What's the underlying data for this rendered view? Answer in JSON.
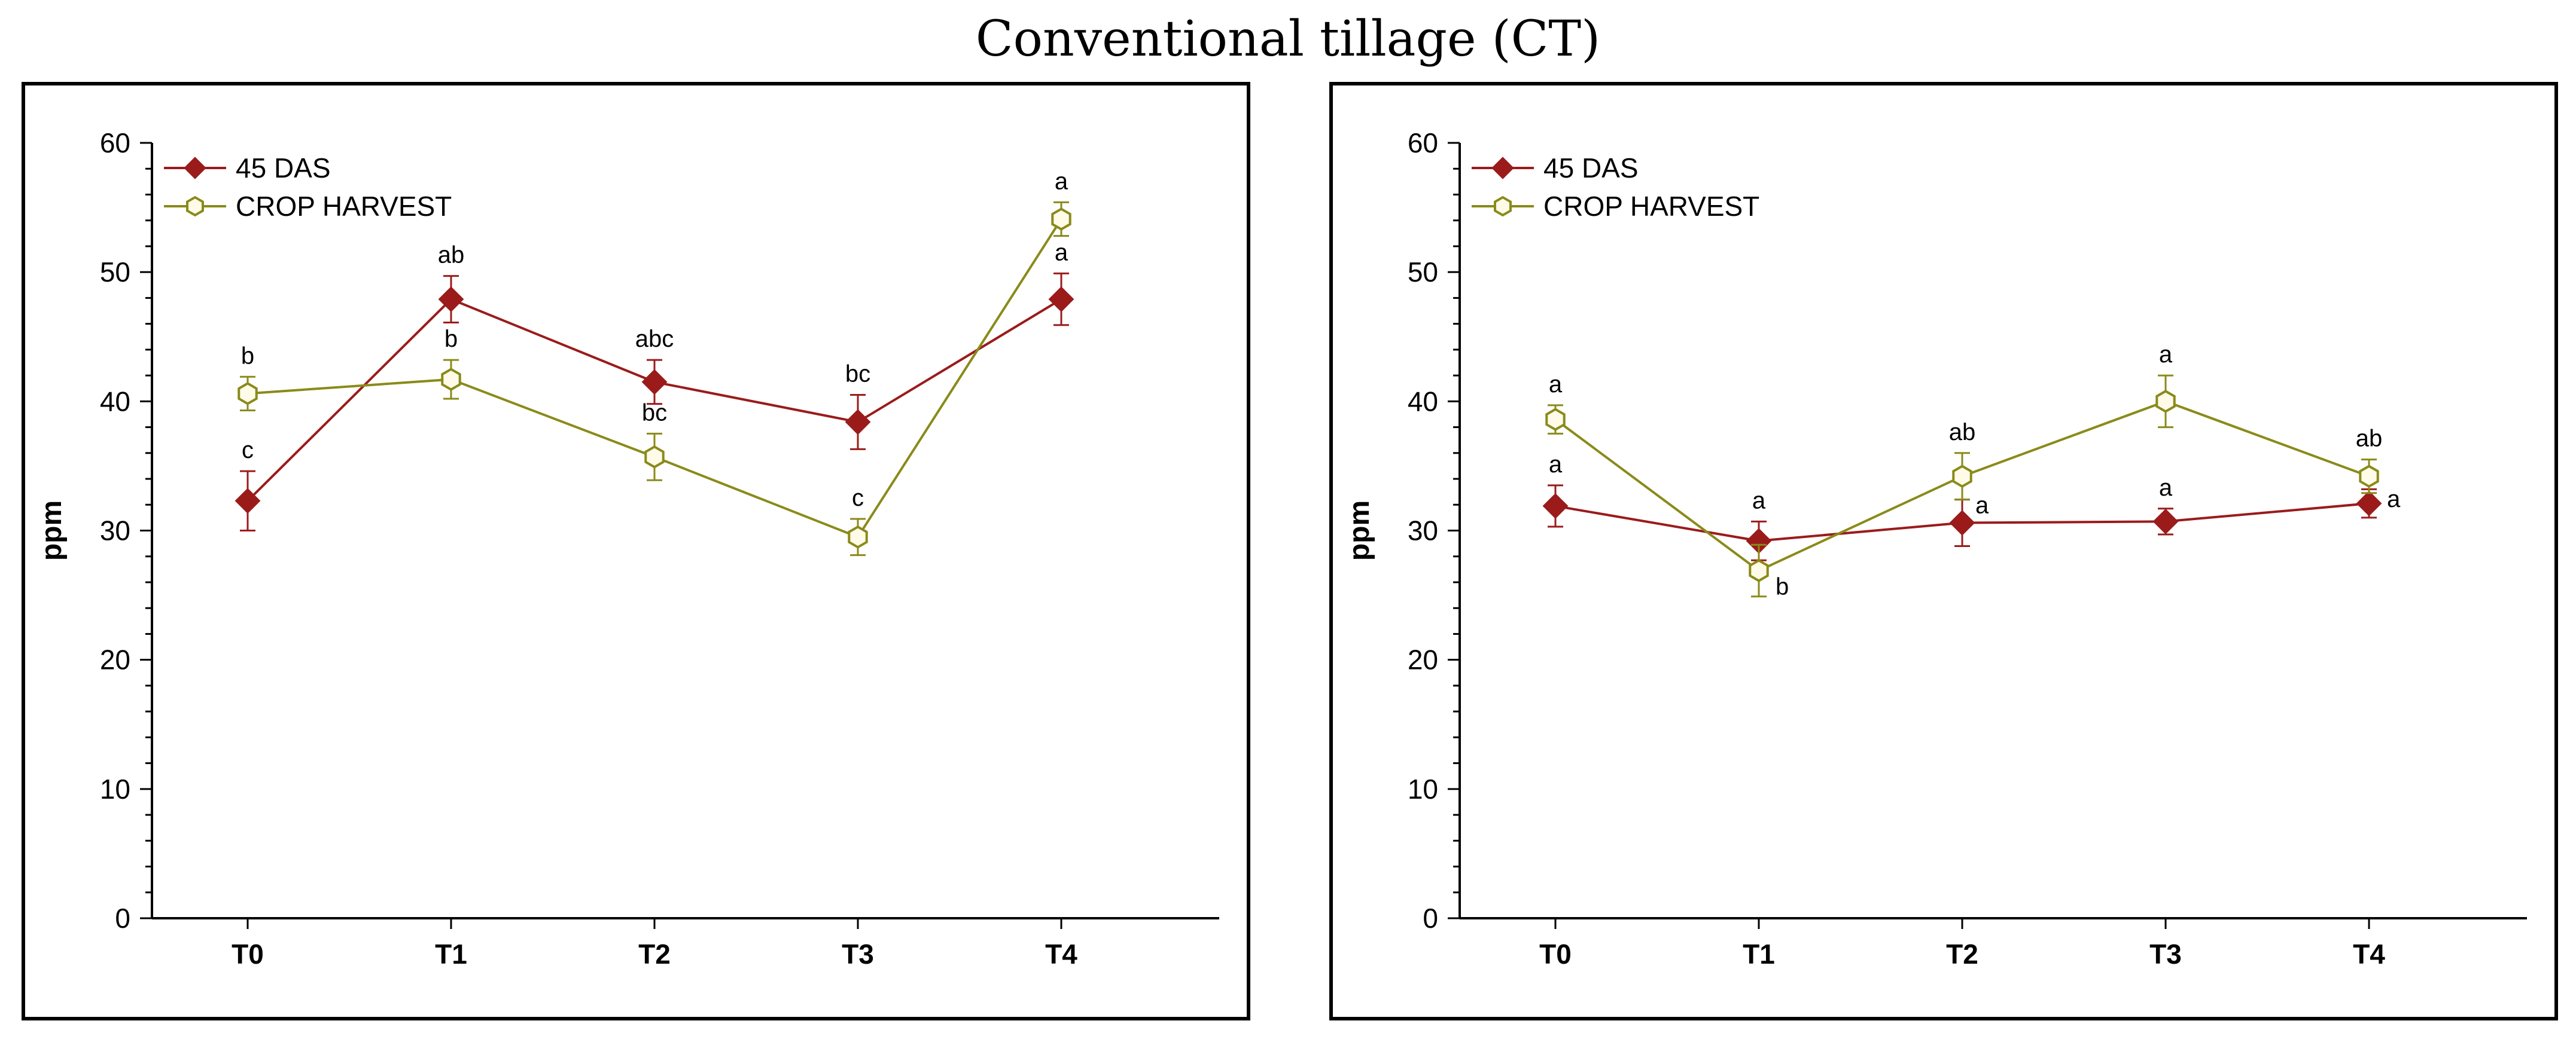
{
  "title": "Conventional tillage (CT)",
  "chart_data": [
    {
      "type": "line",
      "ylabel": "ppm",
      "xlabel": "",
      "ylim": [
        0,
        60
      ],
      "yticks": [
        0,
        10,
        20,
        30,
        40,
        50,
        60
      ],
      "categories": [
        "T0",
        "T1",
        "T2",
        "T3",
        "T4"
      ],
      "legend_position": "top-left",
      "series": [
        {
          "name": "45 DAS",
          "color": "#9b1b1b",
          "marker": "diamond",
          "values": [
            32.3,
            47.9,
            41.5,
            38.4,
            47.9
          ],
          "errors": [
            2.3,
            1.8,
            1.7,
            2.1,
            2.0
          ],
          "labels": [
            "c",
            "ab",
            "abc",
            "bc",
            "a"
          ]
        },
        {
          "name": "CROP HARVEST",
          "color": "#8a8a1a",
          "marker": "hexagon",
          "values": [
            40.6,
            41.7,
            35.7,
            29.5,
            54.1
          ],
          "errors": [
            1.3,
            1.5,
            1.8,
            1.4,
            1.3
          ],
          "labels": [
            "b",
            "b",
            "bc",
            "c",
            "a"
          ]
        }
      ]
    },
    {
      "type": "line",
      "ylabel": "ppm",
      "xlabel": "",
      "ylim": [
        0,
        60
      ],
      "yticks": [
        0,
        10,
        20,
        30,
        40,
        50,
        60
      ],
      "categories": [
        "T0",
        "T1",
        "T2",
        "T3",
        "T4"
      ],
      "legend_position": "top-left",
      "series": [
        {
          "name": "45 DAS",
          "color": "#9b1b1b",
          "marker": "diamond",
          "values": [
            31.9,
            29.2,
            30.6,
            30.7,
            32.1
          ],
          "errors": [
            1.6,
            1.5,
            1.8,
            1.0,
            1.1
          ],
          "labels": [
            "a",
            "a",
            "a",
            "a",
            "a"
          ]
        },
        {
          "name": "CROP HARVEST",
          "color": "#8a8a1a",
          "marker": "hexagon",
          "values": [
            38.6,
            26.9,
            34.2,
            40.0,
            34.2
          ],
          "errors": [
            1.1,
            2.0,
            1.8,
            2.0,
            1.3
          ],
          "labels": [
            "a",
            "b",
            "ab",
            "a",
            "ab"
          ]
        }
      ]
    }
  ]
}
